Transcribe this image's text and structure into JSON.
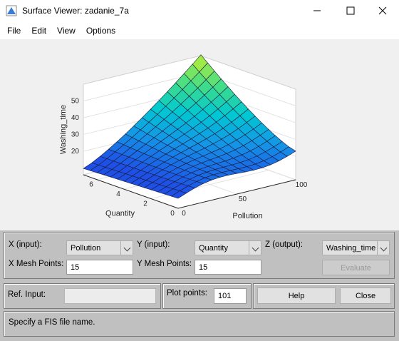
{
  "window": {
    "title": "Surface Viewer: zadanie_7a"
  },
  "menu": [
    "File",
    "Edit",
    "View",
    "Options"
  ],
  "plot": {
    "zlabel": "Washing_time",
    "xlabel": "Pollution",
    "ylabel": "Quantity",
    "xlim": [
      0,
      100
    ],
    "ylim": [
      0,
      7
    ],
    "zlim": [
      6,
      60
    ],
    "xticks": [
      0,
      50,
      100
    ],
    "yticks": [
      0,
      2,
      4,
      6
    ],
    "zticks": [
      20,
      30,
      40,
      50
    ]
  },
  "controls": {
    "x_input_label": "X (input):",
    "x_input": "Pollution",
    "y_input_label": "Y (input):",
    "y_input": "Quantity",
    "z_output_label": "Z (output):",
    "z_output": "Washing_time",
    "x_mesh_label": "X Mesh Points:",
    "x_mesh": "15",
    "y_mesh_label": "Y Mesh Points:",
    "y_mesh": "15",
    "evaluate": "Evaluate",
    "ref_input_label": "Ref. Input:",
    "plot_points_label": "Plot points:",
    "plot_points": "101",
    "help": "Help",
    "close": "Close"
  },
  "status": "Specify a FIS file name."
}
